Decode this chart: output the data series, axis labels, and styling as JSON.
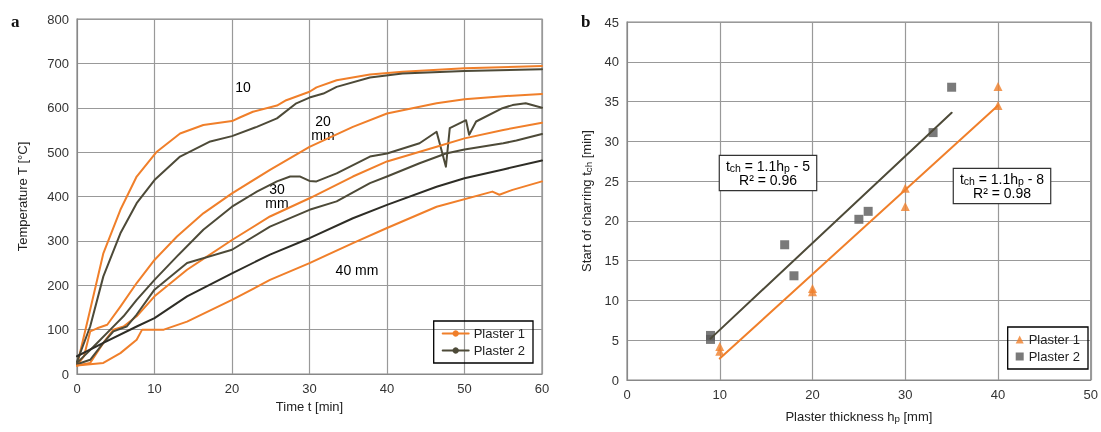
{
  "chart_data": [
    {
      "type": "line",
      "title": "a",
      "xlabel": "Time t [min]",
      "ylabel": "Temperature T [°C]",
      "xlim": [
        0,
        60
      ],
      "xticks": [
        0,
        10,
        20,
        30,
        40,
        50,
        60
      ],
      "ylim": [
        0,
        800
      ],
      "yticks": [
        0,
        100,
        200,
        300,
        400,
        500,
        600,
        700,
        800
      ],
      "grid": true,
      "legend": "bottom right",
      "marker": "none",
      "line_style": "solid",
      "series": [
        {
          "name": "Plaster 1",
          "color": "#f07f2a",
          "x": [
            0,
            1.7,
            3.4,
            5.6,
            7.7,
            10.3,
            13.3,
            16.3,
            20,
            21,
            22.7,
            25.8,
            27,
            30,
            30.9,
            33.5,
            37.8,
            42,
            50,
            60
          ],
          "values": [
            19,
            145,
            272,
            370,
            445,
            501,
            542,
            561,
            570,
            578,
            591,
            605,
            617,
            636,
            646,
            662,
            675,
            681,
            689,
            694
          ]
        },
        {
          "name": "Plaster 2",
          "color": "#4d4a38",
          "x": [
            0,
            1.7,
            3.4,
            5.6,
            7.7,
            10,
            13.3,
            17.2,
            20,
            23.2,
            25.8,
            28.3,
            30,
            31.8,
            33.5,
            37.8,
            42,
            50,
            60
          ],
          "values": [
            28,
            107,
            220,
            317,
            385,
            437,
            490,
            524,
            536,
            557,
            576,
            610,
            623,
            632,
            647,
            668,
            677,
            683,
            687
          ]
        },
        {
          "color": "#f07f2a",
          "x": [
            0,
            0.9,
            1.7,
            2.6,
            3.9,
            5.6,
            7.7,
            10,
            12.9,
            16.3,
            20,
            24.9,
            30,
            35.6,
            40,
            46.4,
            50,
            55,
            60
          ],
          "values": [
            19,
            40,
            96,
            103,
            111,
            152,
            205,
            257,
            310,
            362,
            407,
            460,
            512,
            557,
            587,
            610,
            619,
            626,
            631
          ]
        },
        {
          "color": "#4d4a38",
          "x": [
            0,
            1.3,
            2.6,
            4.3,
            6,
            7.7,
            10,
            12.9,
            16.3,
            20,
            23.2,
            25.8,
            27.5,
            28.8,
            30,
            30.9,
            33.5,
            37.8,
            40,
            44.2,
            46.4,
            47.6,
            48.1,
            50.2,
            50.6,
            51.5,
            54.9,
            56.2,
            57.9,
            60
          ],
          "values": [
            25,
            47,
            70,
            100,
            130,
            167,
            212,
            265,
            325,
            377,
            411,
            434,
            445,
            445,
            435,
            434,
            452,
            490,
            497,
            520,
            546,
            467,
            554,
            572,
            539,
            569,
            599,
            606,
            610,
            600
          ]
        },
        {
          "color": "#f07f2a",
          "x": [
            0,
            1.7,
            3.4,
            4.7,
            6,
            7.7,
            10,
            14.2,
            20,
            24.9,
            30,
            35.6,
            40,
            46.4,
            50,
            55,
            60
          ],
          "values": [
            19,
            25,
            70,
            100,
            107,
            130,
            175,
            235,
            302,
            355,
            396,
            445,
            479,
            512,
            531,
            550,
            566
          ]
        },
        {
          "color": "#4d4a38",
          "x": [
            0,
            1.7,
            3.4,
            4.7,
            6.4,
            7.7,
            10,
            14.2,
            20,
            24.9,
            30,
            33.5,
            37.8,
            40,
            44.2,
            47.6,
            50,
            55,
            56.7,
            60
          ],
          "values": [
            22,
            32,
            70,
            96,
            107,
            134,
            190,
            250,
            280,
            332,
            370,
            389,
            430,
            445,
            475,
            497,
            506,
            520,
            526,
            541
          ]
        },
        {
          "color": "#2e2d26",
          "x": [
            0,
            3.4,
            7.7,
            10,
            14.2,
            20,
            24.9,
            30,
            35.6,
            40,
            46.4,
            50,
            55,
            60
          ],
          "values": [
            40,
            70,
            107,
            126,
            175,
            227,
            269,
            306,
            351,
            381,
            422,
            441,
            461,
            481
          ]
        },
        {
          "color": "#f07f2a",
          "x": [
            0,
            3.4,
            5.6,
            7.7,
            8.4,
            11.2,
            14.2,
            20,
            24.9,
            30,
            35.6,
            40,
            46.4,
            53.6,
            54.5,
            56.2,
            60
          ],
          "values": [
            19,
            25,
            47,
            77,
            100,
            100,
            118,
            167,
            212,
            250,
            295,
            329,
            377,
            411,
            404,
            415,
            434
          ]
        }
      ],
      "annotations": [
        "10",
        "20 mm",
        "30 mm",
        "40 mm"
      ]
    },
    {
      "type": "scatter",
      "title": "b",
      "xlabel": "Plaster thickness h$_{p}$ [mm]",
      "ylabel": "Start of charring t$_{ch}$ [min]",
      "xlim": [
        0,
        50
      ],
      "xticks": [
        0,
        10,
        20,
        30,
        40,
        50
      ],
      "ylim": [
        0,
        45
      ],
      "yticks": [
        0,
        5,
        10,
        15,
        20,
        25,
        30,
        35,
        40,
        45
      ],
      "grid": true,
      "legend": "bottom right",
      "series": [
        {
          "name": "Plaster 1",
          "color": "#f07f2a",
          "marker": "triangle",
          "x": [
            10,
            10,
            20,
            20,
            30,
            30,
            40,
            40
          ],
          "values": [
            4.2,
            3.6,
            11.5,
            11.1,
            21.8,
            24.1,
            36.9,
            34.5
          ]
        },
        {
          "name": "Plaster 2",
          "color": "#595959",
          "marker": "square",
          "x": [
            9,
            9,
            17,
            18,
            25,
            26,
            33,
            35
          ],
          "values": [
            5.6,
            5.1,
            17,
            13.1,
            20.2,
            21.2,
            31.1,
            36.8
          ]
        },
        {
          "type": "line",
          "color": "#4d4a38",
          "marker": "none",
          "x": [
            9,
            35
          ],
          "values": [
            5.2,
            33.6
          ]
        },
        {
          "type": "line",
          "color": "#f07f2a",
          "marker": "none",
          "x": [
            10,
            40
          ],
          "values": [
            2.7,
            34.5
          ]
        }
      ],
      "annotations": [
        "t$_{ch}$ = 1.1h$_{p}$ - 5\nR² = 0.96",
        "t$_{ch}$ = 1.1h$_{p}$ - 8\nR² = 0.98"
      ]
    }
  ]
}
